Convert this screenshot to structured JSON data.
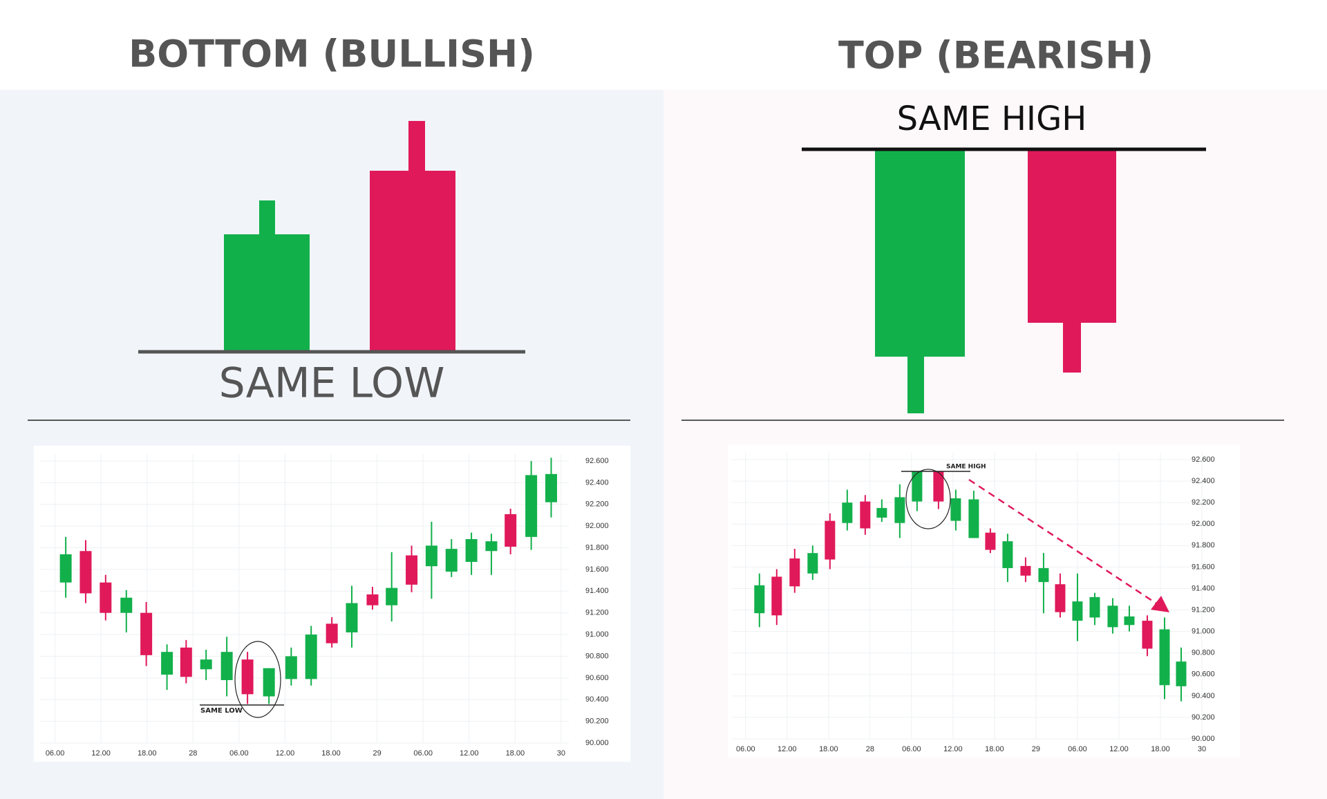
{
  "chart_data": [
    {
      "type": "candlestick",
      "title": "BOTTOM (BULLISH)",
      "annotation": "SAME LOW",
      "x": [
        1.4,
        4.0,
        6.6,
        9.3,
        11.9,
        14.6,
        17.1,
        19.7,
        22.4,
        25.1,
        27.9,
        30.8,
        33.4,
        36.1,
        38.7,
        41.4,
        43.9,
        46.5,
        49.1,
        51.7,
        54.3,
        56.9,
        59.4,
        62.1,
        64.7
      ],
      "open": [
        91.48,
        91.77,
        91.48,
        91.2,
        91.2,
        90.63,
        90.88,
        90.68,
        90.58,
        90.77,
        90.43,
        90.59,
        90.59,
        91.1,
        91.02,
        91.37,
        91.27,
        91.73,
        91.63,
        91.58,
        91.67,
        91.77,
        92.11,
        91.9,
        92.22
      ],
      "high": [
        91.9,
        91.87,
        91.55,
        91.41,
        91.3,
        90.91,
        90.95,
        90.86,
        90.98,
        90.84,
        90.69,
        90.88,
        91.08,
        91.16,
        91.45,
        91.44,
        91.76,
        91.82,
        92.04,
        91.88,
        91.94,
        91.93,
        92.16,
        92.6,
        92.63
      ],
      "low": [
        91.34,
        91.29,
        91.13,
        91.02,
        90.71,
        90.49,
        90.55,
        90.58,
        90.43,
        90.36,
        90.36,
        90.53,
        90.53,
        90.88,
        90.88,
        91.23,
        91.12,
        91.39,
        91.33,
        91.53,
        91.55,
        91.55,
        91.74,
        91.78,
        92.08
      ],
      "close": [
        91.74,
        91.38,
        91.2,
        91.34,
        90.81,
        90.84,
        90.61,
        90.77,
        90.84,
        90.45,
        90.69,
        90.8,
        91.0,
        90.92,
        91.29,
        91.27,
        91.43,
        91.46,
        91.82,
        91.79,
        91.88,
        91.86,
        91.81,
        92.47,
        92.48
      ],
      "up_color": "#12b04b",
      "down_color": "#e0195a",
      "grid": true,
      "xlim": [
        -2,
        67
      ],
      "ylim": [
        90,
        92.6
      ],
      "xticks": [
        {
          "value": 0,
          "label": "06.00"
        },
        {
          "value": 6,
          "label": "12.00"
        },
        {
          "value": 12,
          "label": "18.00"
        },
        {
          "value": 18,
          "label": "28"
        },
        {
          "value": 24,
          "label": "06.00"
        },
        {
          "value": 30,
          "label": "12.00"
        },
        {
          "value": 36,
          "label": "18.00"
        },
        {
          "value": 42,
          "label": "29"
        },
        {
          "value": 48,
          "label": "06.00"
        },
        {
          "value": 54,
          "label": "12.00"
        },
        {
          "value": 60,
          "label": "18.00"
        },
        {
          "value": 66,
          "label": "30"
        }
      ],
      "yticks": [
        {
          "value": 90,
          "label": "90.000"
        },
        {
          "value": 90.2,
          "label": "90.200"
        },
        {
          "value": 90.4,
          "label": "90.400"
        },
        {
          "value": 90.6,
          "label": "90.600"
        },
        {
          "value": 90.8,
          "label": "90.800"
        },
        {
          "value": 91,
          "label": "91.000"
        },
        {
          "value": 91.2,
          "label": "91.200"
        },
        {
          "value": 91.4,
          "label": "91.400"
        },
        {
          "value": 91.6,
          "label": "91.600"
        },
        {
          "value": 91.8,
          "label": "91.800"
        },
        {
          "value": 92,
          "label": "92.000"
        },
        {
          "value": 92.2,
          "label": "92.200"
        },
        {
          "value": 92.4,
          "label": "92.400"
        },
        {
          "value": 92.6,
          "label": "92.600"
        }
      ]
    },
    {
      "type": "candlestick",
      "title": "TOP (BEARISH)",
      "annotation": "SAME HIGH",
      "x": [
        2.0,
        4.5,
        7.1,
        9.7,
        12.2,
        14.7,
        17.3,
        19.7,
        22.3,
        24.8,
        27.9,
        30.4,
        33.0,
        35.4,
        37.9,
        40.5,
        43.1,
        45.5,
        48.0,
        50.5,
        53.1,
        55.5,
        58.1,
        60.6,
        63.0
      ],
      "open": [
        91.17,
        91.51,
        91.68,
        91.54,
        92.03,
        92.01,
        92.21,
        92.06,
        92.01,
        92.21,
        92.49,
        92.03,
        91.87,
        91.92,
        91.59,
        91.61,
        91.46,
        91.44,
        91.1,
        91.13,
        91.04,
        91.06,
        91.1,
        90.5,
        90.49
      ],
      "high": [
        91.54,
        91.58,
        91.77,
        91.8,
        92.1,
        92.32,
        92.27,
        92.23,
        92.37,
        92.49,
        92.49,
        92.32,
        92.31,
        91.96,
        91.91,
        91.69,
        91.73,
        91.54,
        91.54,
        91.36,
        91.31,
        91.24,
        91.15,
        91.13,
        90.85
      ],
      "low": [
        91.04,
        91.06,
        91.36,
        91.48,
        91.58,
        91.94,
        91.9,
        92.02,
        91.87,
        92.12,
        92.14,
        91.94,
        91.87,
        91.73,
        91.46,
        91.46,
        91.17,
        91.13,
        90.91,
        91.06,
        90.98,
        91.0,
        90.77,
        90.37,
        90.35
      ],
      "close": [
        91.43,
        91.15,
        91.42,
        91.73,
        91.67,
        92.2,
        91.96,
        92.15,
        92.25,
        92.49,
        92.21,
        92.24,
        92.23,
        91.76,
        91.84,
        91.52,
        91.59,
        91.18,
        91.28,
        91.32,
        91.24,
        91.14,
        90.84,
        91.02,
        90.72
      ],
      "up_color": "#12b04b",
      "down_color": "#e0195a",
      "grid": true,
      "xlim": [
        -2,
        67
      ],
      "ylim": [
        90,
        92.6
      ],
      "xticks": [
        {
          "value": 0,
          "label": "06.00"
        },
        {
          "value": 6,
          "label": "12.00"
        },
        {
          "value": 12,
          "label": "18.00"
        },
        {
          "value": 18,
          "label": "28"
        },
        {
          "value": 24,
          "label": "06.00"
        },
        {
          "value": 30,
          "label": "12.00"
        },
        {
          "value": 36,
          "label": "18.00"
        },
        {
          "value": 42,
          "label": "29"
        },
        {
          "value": 48,
          "label": "06.00"
        },
        {
          "value": 54,
          "label": "12.00"
        },
        {
          "value": 60,
          "label": "18.00"
        },
        {
          "value": 66,
          "label": "30"
        }
      ],
      "yticks": [
        {
          "value": 90,
          "label": "90.000"
        },
        {
          "value": 90.2,
          "label": "90.200"
        },
        {
          "value": 90.4,
          "label": "90.400"
        },
        {
          "value": 90.6,
          "label": "90.600"
        },
        {
          "value": 90.8,
          "label": "90.800"
        },
        {
          "value": 91,
          "label": "91.000"
        },
        {
          "value": 91.2,
          "label": "91.200"
        },
        {
          "value": 91.4,
          "label": "91.400"
        },
        {
          "value": 91.6,
          "label": "91.600"
        },
        {
          "value": 91.8,
          "label": "91.800"
        },
        {
          "value": 92,
          "label": "92.000"
        },
        {
          "value": 92.2,
          "label": "92.200"
        },
        {
          "value": 92.4,
          "label": "92.400"
        },
        {
          "value": 92.6,
          "label": "92.600"
        }
      ]
    }
  ]
}
